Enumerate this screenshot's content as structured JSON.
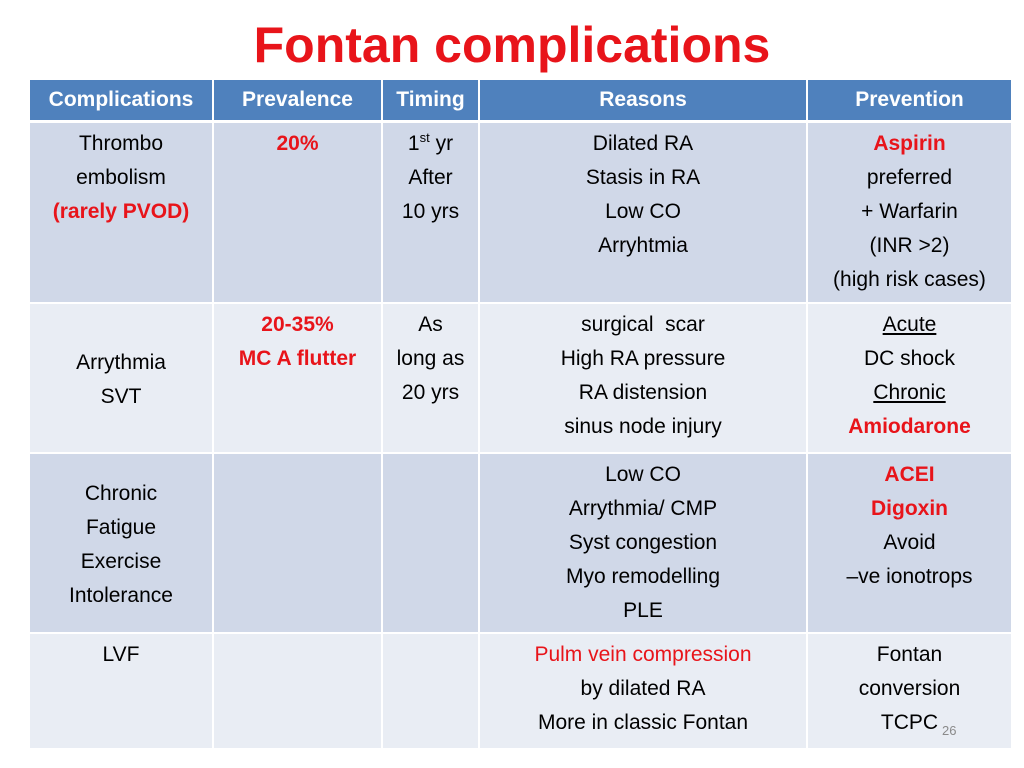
{
  "slide": {
    "title": "Fontan complications",
    "page_number": "26"
  },
  "table": {
    "headers": [
      "Complications",
      "Prevalence",
      "Timing",
      "Reasons",
      "Prevention"
    ],
    "rows": [
      {
        "complication": [
          "Thrombo",
          "embolism",
          "(rarely PVOD)"
        ],
        "prevalence": [
          "20%"
        ],
        "timing": [
          "1",
          "st",
          " yr",
          "After",
          "10 yrs"
        ],
        "reasons": [
          "Dilated RA",
          "Stasis in RA",
          "Low CO",
          "Arryhtmia"
        ],
        "prevention": [
          "Aspirin",
          "preferred",
          "+ Warfarin",
          "(INR >2)",
          "(high risk cases)"
        ]
      },
      {
        "complication": [
          "Arrythmia",
          "SVT"
        ],
        "prevalence": [
          "20-35%",
          "MC A flutter"
        ],
        "timing": [
          "As",
          "long as",
          "20 yrs"
        ],
        "reasons": [
          "surgical  scar",
          "High RA pressure",
          "RA distension",
          "sinus node injury"
        ],
        "prevention": [
          "Acute",
          "DC shock",
          "Chronic",
          "Amiodarone"
        ]
      },
      {
        "complication": [
          "Chronic",
          "Fatigue",
          "Exercise",
          "Intolerance"
        ],
        "prevalence": [],
        "timing": [],
        "reasons": [
          "Low CO",
          "Arrythmia/ CMP",
          "Syst congestion",
          "Myo remodelling",
          "PLE"
        ],
        "prevention": [
          "ACEI",
          "Digoxin",
          "Avoid",
          "–ve ionotrops"
        ]
      },
      {
        "complication": [
          "LVF"
        ],
        "prevalence": [],
        "timing": [],
        "reasons": [
          "Pulm vein compression",
          "by dilated RA",
          "More in classic Fontan"
        ],
        "prevention": [
          "Fontan",
          "conversion",
          "TCPC"
        ]
      }
    ]
  },
  "colors": {
    "title_red": "#e8141a",
    "header_blue": "#4f81bd",
    "row_dark": "#d0d8e8",
    "row_light": "#e9edf4"
  }
}
